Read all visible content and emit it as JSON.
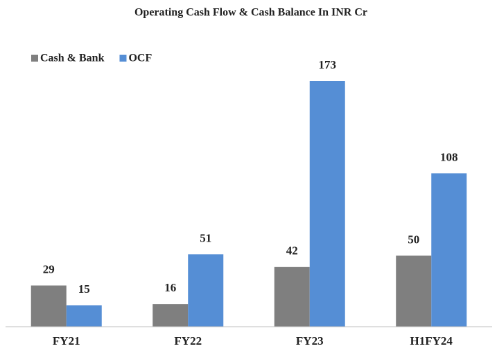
{
  "chart_data": {
    "type": "bar",
    "title": "Operating Cash Flow & Cash Balance In INR Cr",
    "categories": [
      "FY21",
      "FY22",
      "FY23",
      "H1FY24"
    ],
    "series": [
      {
        "name": "Cash & Bank",
        "color": "#7f7f7f",
        "values": [
          29,
          16,
          42,
          50
        ]
      },
      {
        "name": "OCF",
        "color": "#558ed5",
        "values": [
          15,
          51,
          173,
          108
        ]
      }
    ]
  }
}
